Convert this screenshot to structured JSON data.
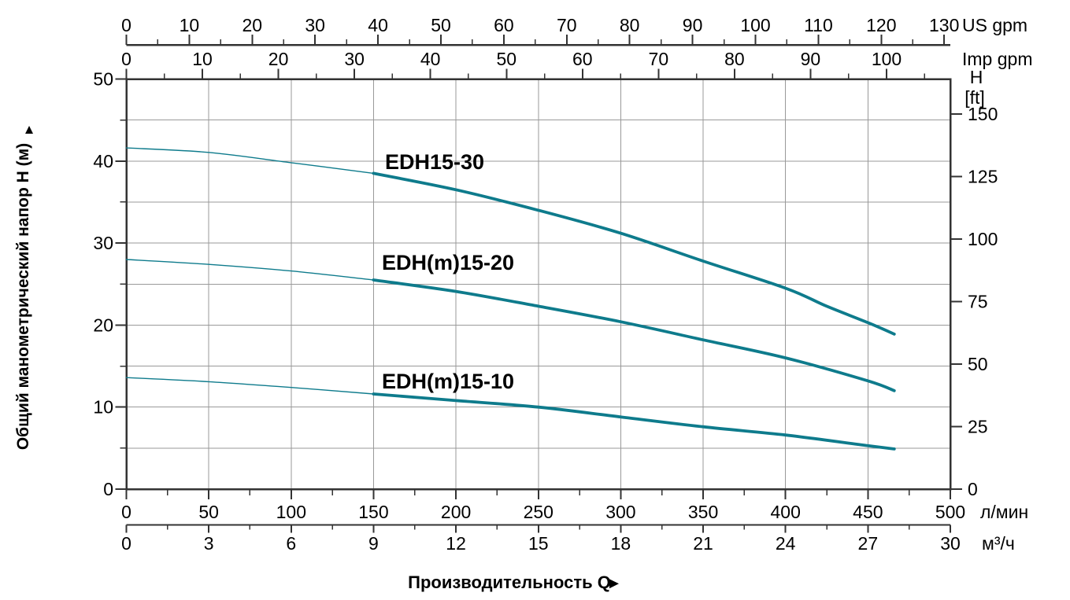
{
  "chart_data": {
    "type": "line",
    "title": "",
    "x_title": "Производительность Q",
    "x_title_arrow": "►",
    "axes": {
      "top_us": {
        "unit": "US gpm",
        "ticks": [
          0,
          10,
          20,
          30,
          40,
          50,
          60,
          70,
          80,
          90,
          100,
          110,
          120,
          130
        ],
        "minor_step": 5
      },
      "top_imp": {
        "unit": "Imp gpm",
        "ticks": [
          0,
          10,
          20,
          30,
          40,
          50,
          60,
          70,
          80,
          90,
          100
        ],
        "minor_step": 5,
        "minor_extent": 105
      },
      "left": {
        "title": "Общий манометрический напор H (м)",
        "title_arrow": "▲",
        "range": [
          0,
          50
        ],
        "ticks": [
          0,
          10,
          20,
          30,
          40,
          50
        ],
        "minor_ticks": [
          5,
          15,
          25,
          35,
          45
        ]
      },
      "right": {
        "unit_line1": "H",
        "unit_line2": "[ft]",
        "ticks": [
          0,
          25,
          50,
          75,
          100,
          125,
          150
        ],
        "m_per_ft": 0.3048
      },
      "bottom_lmin": {
        "unit": "л/мин",
        "range": [
          0,
          500
        ],
        "ticks": [
          0,
          50,
          100,
          150,
          200,
          250,
          300,
          350,
          400,
          450,
          500
        ],
        "minor_step": 25
      },
      "bottom_m3h": {
        "unit": "м³/ч",
        "range": [
          0,
          30
        ],
        "ticks": [
          0,
          3,
          6,
          9,
          12,
          15,
          18,
          21,
          24,
          27,
          30
        ],
        "minor_step": 1.5
      }
    },
    "grid": {
      "vertical_every_lmin": 50,
      "horizontal_every_m": 5
    },
    "thin_until_lmin": 150,
    "series": [
      {
        "name": "EDH15-30",
        "points_lmin_m": [
          [
            0,
            41.6
          ],
          [
            50,
            41.05
          ],
          [
            100,
            39.8
          ],
          [
            150,
            38.5
          ],
          [
            200,
            36.5
          ],
          [
            250,
            34.0
          ],
          [
            300,
            31.2
          ],
          [
            350,
            27.8
          ],
          [
            400,
            24.5
          ],
          [
            425,
            22.3
          ],
          [
            450,
            20.3
          ],
          [
            466,
            18.9
          ]
        ]
      },
      {
        "name": "EDH(m)15-20",
        "points_lmin_m": [
          [
            0,
            28.0
          ],
          [
            50,
            27.4
          ],
          [
            100,
            26.6
          ],
          [
            150,
            25.5
          ],
          [
            200,
            24.1
          ],
          [
            250,
            22.3
          ],
          [
            300,
            20.4
          ],
          [
            350,
            18.2
          ],
          [
            400,
            16.0
          ],
          [
            450,
            13.2
          ],
          [
            466,
            12.0
          ]
        ]
      },
      {
        "name": "EDH(m)15-10",
        "points_lmin_m": [
          [
            0,
            13.6
          ],
          [
            50,
            13.1
          ],
          [
            100,
            12.4
          ],
          [
            150,
            11.6
          ],
          [
            200,
            10.8
          ],
          [
            250,
            10.0
          ],
          [
            300,
            8.8
          ],
          [
            350,
            7.6
          ],
          [
            400,
            6.6
          ],
          [
            450,
            5.3
          ],
          [
            466,
            4.9
          ]
        ]
      }
    ],
    "colors": {
      "curve": "#0e7b8c",
      "grid": "#999999",
      "axis": "#333333",
      "text": "#000000",
      "background": "#ffffff"
    }
  }
}
